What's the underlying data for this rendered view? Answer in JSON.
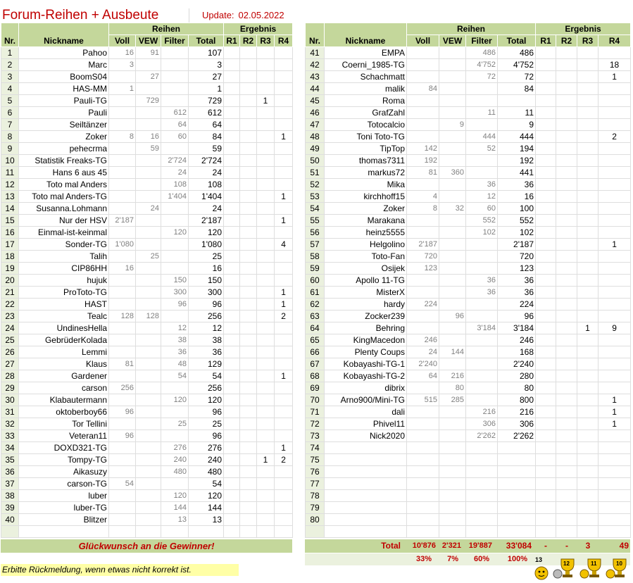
{
  "title": "Forum-Reihen + Ausbeute",
  "update": {
    "label": "Update:",
    "date": "02.05.2022"
  },
  "headers": {
    "nr": "Nr.",
    "nickname": "Nickname",
    "reihen": "Reihen",
    "ergebnis": "Ergebnis",
    "voll": "Voll",
    "vew": "VEW",
    "filter": "Filter",
    "total": "Total",
    "r1": "R1",
    "r2": "R2",
    "r3": "R3",
    "r4": "R4"
  },
  "colors": {
    "header_green": "#c4d79b",
    "light_green": "#ebf1de",
    "red": "#c00000",
    "yellow": "#ffffa6"
  },
  "left_rows": [
    [
      "1",
      "Pahoo",
      "16",
      "91",
      "",
      "107",
      "",
      "",
      "",
      ""
    ],
    [
      "2",
      "Marc",
      "3",
      "",
      "",
      "3",
      "",
      "",
      "",
      ""
    ],
    [
      "3",
      "BoomS04",
      "",
      "27",
      "",
      "27",
      "",
      "",
      "",
      ""
    ],
    [
      "4",
      "HAS-MM",
      "1",
      "",
      "",
      "1",
      "",
      "",
      "",
      ""
    ],
    [
      "5",
      "Pauli-TG",
      "",
      "729",
      "",
      "729",
      "",
      "",
      "1",
      ""
    ],
    [
      "6",
      "Pauli",
      "",
      "",
      "612",
      "612",
      "",
      "",
      "",
      ""
    ],
    [
      "7",
      "Seiltänzer",
      "",
      "",
      "64",
      "64",
      "",
      "",
      "",
      ""
    ],
    [
      "8",
      "Zoker",
      "8",
      "16",
      "60",
      "84",
      "",
      "",
      "",
      "1"
    ],
    [
      "9",
      "pehecrma",
      "",
      "59",
      "",
      "59",
      "",
      "",
      "",
      ""
    ],
    [
      "10",
      "Statistik Freaks-TG",
      "",
      "",
      "2'724",
      "2'724",
      "",
      "",
      "",
      ""
    ],
    [
      "11",
      "Hans 6 aus 45",
      "",
      "",
      "24",
      "24",
      "",
      "",
      "",
      ""
    ],
    [
      "12",
      "Toto mal Anders",
      "",
      "",
      "108",
      "108",
      "",
      "",
      "",
      ""
    ],
    [
      "13",
      "Toto mal Anders-TG",
      "",
      "",
      "1'404",
      "1'404",
      "",
      "",
      "",
      "1"
    ],
    [
      "14",
      "Susanna.Lohmann",
      "",
      "24",
      "",
      "24",
      "",
      "",
      "",
      ""
    ],
    [
      "15",
      "Nur der HSV",
      "2'187",
      "",
      "",
      "2'187",
      "",
      "",
      "",
      "1"
    ],
    [
      "16",
      "Einmal-ist-keinmal",
      "",
      "",
      "120",
      "120",
      "",
      "",
      "",
      ""
    ],
    [
      "17",
      "Sonder-TG",
      "1'080",
      "",
      "",
      "1'080",
      "",
      "",
      "",
      "4"
    ],
    [
      "18",
      "Talih",
      "",
      "25",
      "",
      "25",
      "",
      "",
      "",
      ""
    ],
    [
      "19",
      "CIP86HH",
      "16",
      "",
      "",
      "16",
      "",
      "",
      "",
      ""
    ],
    [
      "20",
      "hujuk",
      "",
      "",
      "150",
      "150",
      "",
      "",
      "",
      ""
    ],
    [
      "21",
      "ProToto-TG",
      "",
      "",
      "300",
      "300",
      "",
      "",
      "",
      "1"
    ],
    [
      "22",
      "HAST",
      "",
      "",
      "96",
      "96",
      "",
      "",
      "",
      "1"
    ],
    [
      "23",
      "Tealc",
      "128",
      "128",
      "",
      "256",
      "",
      "",
      "",
      "2"
    ],
    [
      "24",
      "UndinesHella",
      "",
      "",
      "12",
      "12",
      "",
      "",
      "",
      ""
    ],
    [
      "25",
      "GebrüderKolada",
      "",
      "",
      "38",
      "38",
      "",
      "",
      "",
      ""
    ],
    [
      "26",
      "Lemmi",
      "",
      "",
      "36",
      "36",
      "",
      "",
      "",
      ""
    ],
    [
      "27",
      "Klaus",
      "81",
      "",
      "48",
      "129",
      "",
      "",
      "",
      ""
    ],
    [
      "28",
      "Gardener",
      "",
      "",
      "54",
      "54",
      "",
      "",
      "",
      "1"
    ],
    [
      "29",
      "carson",
      "256",
      "",
      "",
      "256",
      "",
      "",
      "",
      ""
    ],
    [
      "30",
      "Klabautermann",
      "",
      "",
      "120",
      "120",
      "",
      "",
      "",
      ""
    ],
    [
      "31",
      "oktoberboy66",
      "96",
      "",
      "",
      "96",
      "",
      "",
      "",
      ""
    ],
    [
      "32",
      "Tor Tellini",
      "",
      "",
      "25",
      "25",
      "",
      "",
      "",
      ""
    ],
    [
      "33",
      "Veteran11",
      "96",
      "",
      "",
      "96",
      "",
      "",
      "",
      ""
    ],
    [
      "34",
      "DOXD321-TG",
      "",
      "",
      "276",
      "276",
      "",
      "",
      "",
      "1"
    ],
    [
      "35",
      "Tompy-TG",
      "",
      "",
      "240",
      "240",
      "",
      "",
      "1",
      "2"
    ],
    [
      "36",
      "Aikasuzy",
      "",
      "",
      "480",
      "480",
      "",
      "",
      "",
      ""
    ],
    [
      "37",
      "carson-TG",
      "54",
      "",
      "",
      "54",
      "",
      "",
      "",
      ""
    ],
    [
      "38",
      "luber",
      "",
      "",
      "120",
      "120",
      "",
      "",
      "",
      ""
    ],
    [
      "39",
      "luber-TG",
      "",
      "",
      "144",
      "144",
      "",
      "",
      "",
      ""
    ],
    [
      "40",
      "Blitzer",
      "",
      "",
      "13",
      "13",
      "",
      "",
      "",
      ""
    ]
  ],
  "right_rows": [
    [
      "41",
      "EMPA",
      "",
      "",
      "486",
      "486",
      "",
      "",
      "",
      ""
    ],
    [
      "42",
      "Coerni_1985-TG",
      "",
      "",
      "4'752",
      "4'752",
      "",
      "",
      "",
      "18"
    ],
    [
      "43",
      "Schachmatt",
      "",
      "",
      "72",
      "72",
      "",
      "",
      "",
      "1"
    ],
    [
      "44",
      "malik",
      "84",
      "",
      "",
      "84",
      "",
      "",
      "",
      ""
    ],
    [
      "45",
      "Roma",
      "",
      "",
      "",
      "",
      "",
      "",
      "",
      ""
    ],
    [
      "46",
      "GrafZahl",
      "",
      "",
      "11",
      "11",
      "",
      "",
      "",
      ""
    ],
    [
      "47",
      "Totocalcio",
      "",
      "9",
      "",
      "9",
      "",
      "",
      "",
      ""
    ],
    [
      "48",
      "Toni Toto-TG",
      "",
      "",
      "444",
      "444",
      "",
      "",
      "",
      "2"
    ],
    [
      "49",
      "TipTop",
      "142",
      "",
      "52",
      "194",
      "",
      "",
      "",
      ""
    ],
    [
      "50",
      "thomas7311",
      "192",
      "",
      "",
      "192",
      "",
      "",
      "",
      ""
    ],
    [
      "51",
      "markus72",
      "81",
      "360",
      "",
      "441",
      "",
      "",
      "",
      ""
    ],
    [
      "52",
      "Mika",
      "",
      "",
      "36",
      "36",
      "",
      "",
      "",
      ""
    ],
    [
      "53",
      "kirchhoff15",
      "4",
      "",
      "12",
      "16",
      "",
      "",
      "",
      ""
    ],
    [
      "54",
      "Zoker",
      "8",
      "32",
      "60",
      "100",
      "",
      "",
      "",
      ""
    ],
    [
      "55",
      "Marakana",
      "",
      "",
      "552",
      "552",
      "",
      "",
      "",
      ""
    ],
    [
      "56",
      "heinz5555",
      "",
      "",
      "102",
      "102",
      "",
      "",
      "",
      ""
    ],
    [
      "57",
      "Helgolino",
      "2'187",
      "",
      "",
      "2'187",
      "",
      "",
      "",
      "1"
    ],
    [
      "58",
      "Toto-Fan",
      "720",
      "",
      "",
      "720",
      "",
      "",
      "",
      ""
    ],
    [
      "59",
      "Osijek",
      "123",
      "",
      "",
      "123",
      "",
      "",
      "",
      ""
    ],
    [
      "60",
      "Apollo 11-TG",
      "",
      "",
      "36",
      "36",
      "",
      "",
      "",
      ""
    ],
    [
      "61",
      "MisterX",
      "",
      "",
      "36",
      "36",
      "",
      "",
      "",
      ""
    ],
    [
      "62",
      "hardy",
      "224",
      "",
      "",
      "224",
      "",
      "",
      "",
      ""
    ],
    [
      "63",
      "Zocker239",
      "",
      "96",
      "",
      "96",
      "",
      "",
      "",
      ""
    ],
    [
      "64",
      "Behring",
      "",
      "",
      "3'184",
      "3'184",
      "",
      "",
      "1",
      "9"
    ],
    [
      "65",
      "KingMacedon",
      "246",
      "",
      "",
      "246",
      "",
      "",
      "",
      ""
    ],
    [
      "66",
      "Plenty Coups",
      "24",
      "144",
      "",
      "168",
      "",
      "",
      "",
      ""
    ],
    [
      "67",
      "Kobayashi-TG-1",
      "2'240",
      "",
      "",
      "2'240",
      "",
      "",
      "",
      ""
    ],
    [
      "68",
      "Kobayashi-TG-2",
      "64",
      "216",
      "",
      "280",
      "",
      "",
      "",
      ""
    ],
    [
      "69",
      "dibrix",
      "",
      "80",
      "",
      "80",
      "",
      "",
      "",
      ""
    ],
    [
      "70",
      "Arno900/Mini-TG",
      "515",
      "285",
      "",
      "800",
      "",
      "",
      "",
      "1"
    ],
    [
      "71",
      "dali",
      "",
      "",
      "216",
      "216",
      "",
      "",
      "",
      "1"
    ],
    [
      "72",
      "Phivel11",
      "",
      "",
      "306",
      "306",
      "",
      "",
      "",
      "1"
    ],
    [
      "73",
      "Nick2020",
      "",
      "",
      "2'262",
      "2'262",
      "",
      "",
      "",
      ""
    ],
    [
      "74",
      "",
      "",
      "",
      "",
      "",
      "",
      "",
      "",
      ""
    ],
    [
      "75",
      "",
      "",
      "",
      "",
      "",
      "",
      "",
      "",
      ""
    ],
    [
      "76",
      "",
      "",
      "",
      "",
      "",
      "",
      "",
      "",
      ""
    ],
    [
      "77",
      "",
      "",
      "",
      "",
      "",
      "",
      "",
      "",
      ""
    ],
    [
      "78",
      "",
      "",
      "",
      "",
      "",
      "",
      "",
      "",
      ""
    ],
    [
      "79",
      "",
      "",
      "",
      "",
      "",
      "",
      "",
      "",
      ""
    ],
    [
      "80",
      "",
      "",
      "",
      "",
      "",
      "",
      "",
      "",
      ""
    ]
  ],
  "congrats": "Glückwunsch an die Gewinner!",
  "totals": {
    "label": "Total",
    "voll": "10'876",
    "vew": "2'321",
    "filter": "19'887",
    "total": "33'084",
    "r1": "-",
    "r2": "-",
    "r3": "3",
    "r4": "49"
  },
  "percent": {
    "voll": "33%",
    "vew": "7%",
    "filter": "60%",
    "total": "100%"
  },
  "feedback": "Erbitte Rückmeldung, wenn etwas nicht korrekt ist.",
  "trophies": [
    {
      "label": "13"
    },
    {
      "label": "12"
    },
    {
      "label": "11"
    },
    {
      "label": "10"
    }
  ]
}
